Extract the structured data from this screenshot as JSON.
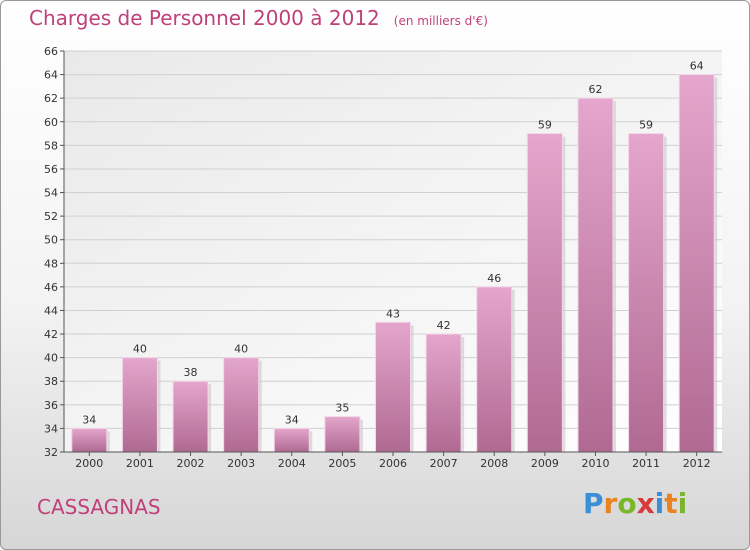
{
  "title": "Charges de Personnel 2000 à 2012",
  "subtitle": "(en milliers d'€)",
  "town": "CASSAGNAS",
  "logo": {
    "letters": [
      "P",
      "r",
      "o",
      "x",
      "i",
      "t",
      "i"
    ],
    "colors": [
      "#3a8fd6",
      "#e8831f",
      "#7ab62a",
      "#d63a3a",
      "#3a8fd6",
      "#e8831f",
      "#7ab62a"
    ]
  },
  "colors": {
    "bar_top": "#e4a6cc",
    "bar_bottom": "#b06a92",
    "accent": "#c0407a"
  },
  "chart_data": {
    "type": "bar",
    "categories": [
      "2000",
      "2001",
      "2002",
      "2003",
      "2004",
      "2005",
      "2006",
      "2007",
      "2008",
      "2009",
      "2010",
      "2011",
      "2012"
    ],
    "values": [
      34,
      40,
      38,
      40,
      34,
      35,
      43,
      42,
      46,
      59,
      62,
      59,
      64
    ],
    "ylim": [
      32,
      66
    ],
    "yticks": [
      32,
      34,
      36,
      38,
      40,
      42,
      44,
      46,
      48,
      50,
      52,
      54,
      56,
      58,
      60,
      62,
      64,
      66
    ],
    "grid": true,
    "legend": "none"
  }
}
